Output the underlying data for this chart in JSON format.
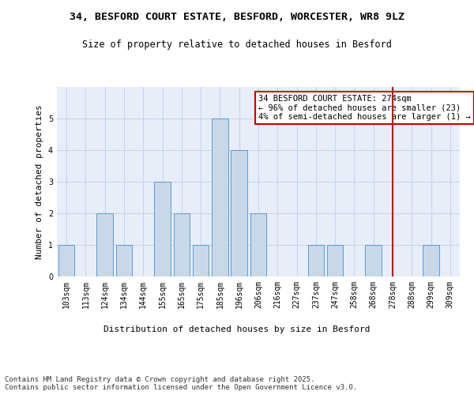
{
  "title1": "34, BESFORD COURT ESTATE, BESFORD, WORCESTER, WR8 9LZ",
  "title2": "Size of property relative to detached houses in Besford",
  "xlabel": "Distribution of detached houses by size in Besford",
  "ylabel": "Number of detached properties",
  "categories": [
    "103sqm",
    "113sqm",
    "124sqm",
    "134sqm",
    "144sqm",
    "155sqm",
    "165sqm",
    "175sqm",
    "185sqm",
    "196sqm",
    "206sqm",
    "216sqm",
    "227sqm",
    "237sqm",
    "247sqm",
    "258sqm",
    "268sqm",
    "278sqm",
    "288sqm",
    "299sqm",
    "309sqm"
  ],
  "values": [
    1,
    0,
    2,
    1,
    0,
    3,
    2,
    1,
    5,
    4,
    2,
    0,
    0,
    1,
    1,
    0,
    1,
    0,
    0,
    1,
    0
  ],
  "bar_color": "#c8d8e8",
  "bar_edge_color": "#5b9bd5",
  "vline_index": 17,
  "vline_color": "#cc0000",
  "annotation_text": "34 BESFORD COURT ESTATE: 274sqm\n← 96% of detached houses are smaller (23)\n4% of semi-detached houses are larger (1) →",
  "annotation_box_color": "#cc0000",
  "ylim": [
    0,
    6
  ],
  "yticks": [
    0,
    1,
    2,
    3,
    4,
    5
  ],
  "grid_color": "#c8d4e8",
  "bg_color": "#e8eef8",
  "footnote": "Contains HM Land Registry data © Crown copyright and database right 2025.\nContains public sector information licensed under the Open Government Licence v3.0.",
  "title1_fontsize": 9.5,
  "title2_fontsize": 8.5,
  "axis_label_fontsize": 8,
  "tick_fontsize": 7,
  "annotation_fontsize": 7.5,
  "footnote_fontsize": 6.5
}
